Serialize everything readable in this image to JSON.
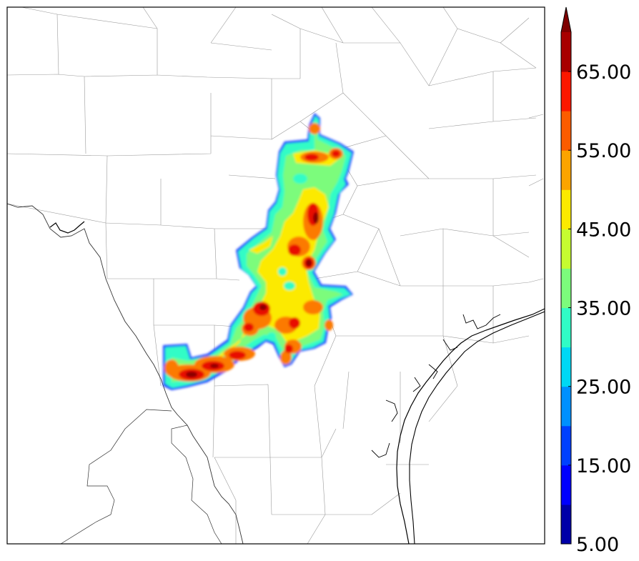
{
  "map": {
    "type": "filled-contour-map",
    "region": "South Texas counties",
    "features": [
      "county boundaries",
      "Rio Grande border",
      "Gulf coastline"
    ]
  },
  "colorbar": {
    "orientation": "vertical",
    "extend": "max",
    "levels": [
      5,
      10,
      15,
      20,
      25,
      30,
      35,
      40,
      45,
      50,
      55,
      60,
      65,
      70
    ],
    "colors": [
      "#0000a8",
      "#0000ff",
      "#0040ff",
      "#0090ff",
      "#00d8f4",
      "#30fcc6",
      "#7cfc7c",
      "#c6fc30",
      "#fcea00",
      "#fca400",
      "#fc5c00",
      "#fc1800",
      "#a80000"
    ],
    "extend_color": "#7f0000",
    "tick_labels": [
      "5.00",
      "15.00",
      "25.00",
      "35.00",
      "45.00",
      "55.00",
      "65.00"
    ]
  }
}
